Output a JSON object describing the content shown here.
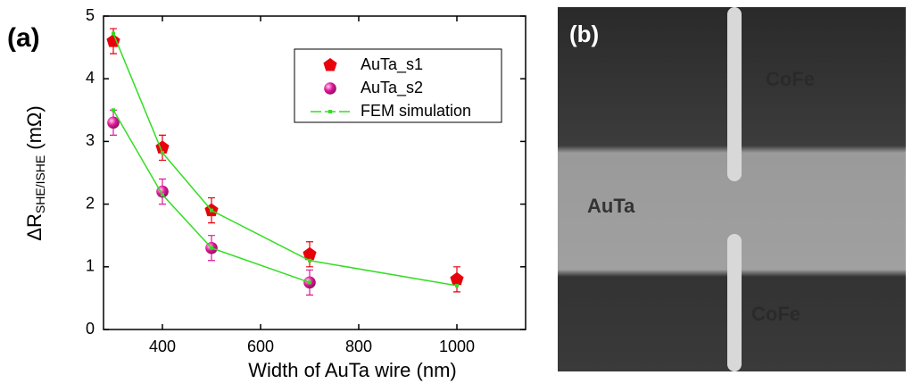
{
  "chart_data": {
    "type": "scatter",
    "panel_label": "(a)",
    "xlabel": "Width of AuTa wire (nm)",
    "ylabel": {
      "main": "ΔR",
      "sub": "SHE/ISHE",
      "unit": "(mΩ)"
    },
    "xlim": [
      280,
      1140
    ],
    "xticks": [
      400,
      600,
      800,
      1000
    ],
    "ylim": [
      0,
      5
    ],
    "yticks": [
      0,
      1,
      2,
      3,
      4,
      5
    ],
    "legend": "upper right",
    "series": [
      {
        "name": "AuTa_s1",
        "marker": "pentagon",
        "color": "#e8000b",
        "x": [
          300,
          400,
          500,
          700,
          1000
        ],
        "values": [
          4.6,
          2.9,
          1.9,
          1.2,
          0.8
        ],
        "errors": [
          0.2,
          0.2,
          0.2,
          0.2,
          0.2
        ]
      },
      {
        "name": "AuTa_s2",
        "marker": "sphere",
        "color": "#e0179b",
        "x": [
          300,
          400,
          500,
          700
        ],
        "values": [
          3.3,
          2.2,
          1.3,
          0.75
        ],
        "errors": [
          0.2,
          0.2,
          0.2,
          0.2
        ]
      },
      {
        "name": "FEM simulation",
        "marker": "line",
        "color": "#33dd22",
        "lines": [
          {
            "x": [
              300,
              400,
              500,
              700,
              1000
            ],
            "values": [
              4.72,
              2.82,
              1.9,
              1.1,
              0.7
            ]
          },
          {
            "x": [
              300,
              400,
              500,
              700
            ],
            "values": [
              3.5,
              2.15,
              1.3,
              0.75
            ]
          }
        ]
      }
    ]
  },
  "image_panel": {
    "label": "(b)",
    "texts": [
      "CoFe",
      "AuTa",
      "CoFe"
    ]
  }
}
